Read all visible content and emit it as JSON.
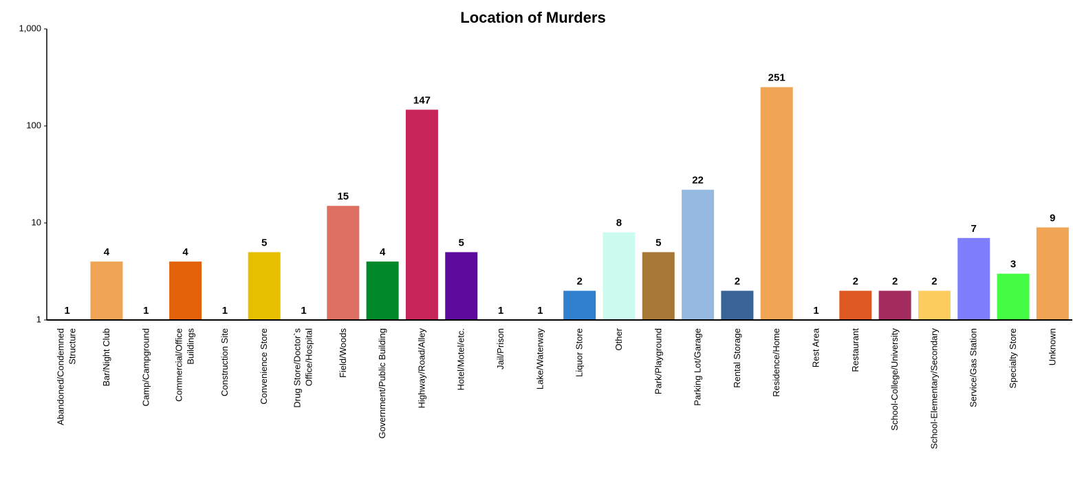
{
  "chart_data": {
    "type": "bar",
    "title": "Location of Murders",
    "categories": [
      "Abandoned/Condemned Structure",
      "Bar/Night Club",
      "Camp/Campground",
      "Commercial/Office Buildings",
      "Construction Site",
      "Convenience Store",
      "Drug Store/Doctor`s Office/Hospital",
      "Field/Woods",
      "Government/Public Building",
      "Highway/Road/Alley",
      "Hotel/Motel/etc.",
      "Jail/Prison",
      "Lake/Waterway",
      "Liquor Store",
      "Other",
      "Park/Playground",
      "Parking Lot/Garage",
      "Rental Storage",
      "Residence/Home",
      "Rest Area",
      "Restaurant",
      "School-College/University",
      "School-Elementary/Secondary",
      "Service/Gas Station",
      "Specialty Store",
      "Unknown"
    ],
    "values": [
      1,
      4,
      1,
      4,
      1,
      5,
      1,
      15,
      4,
      147,
      5,
      1,
      1,
      2,
      8,
      5,
      22,
      2,
      251,
      1,
      2,
      2,
      2,
      7,
      3,
      9
    ],
    "colors": [
      "#000000",
      "#f0a555",
      "#000000",
      "#e36209",
      "#000000",
      "#e6c000",
      "#000000",
      "#de7062",
      "#00882a",
      "#c8265a",
      "#5e0a9c",
      "#000000",
      "#000000",
      "#3080d0",
      "#ccfcef",
      "#a67835",
      "#95b9e1",
      "#386497",
      "#f0a555",
      "#000000",
      "#de5821",
      "#a32c5e",
      "#fdcd60",
      "#7f7ffd",
      "#44fc44",
      "#f0a555"
    ],
    "log_scale": true,
    "ylim": [
      1,
      1000
    ],
    "yticks": [
      1,
      10,
      100,
      {
        "value": 1000,
        "label": "1,000"
      }
    ]
  }
}
